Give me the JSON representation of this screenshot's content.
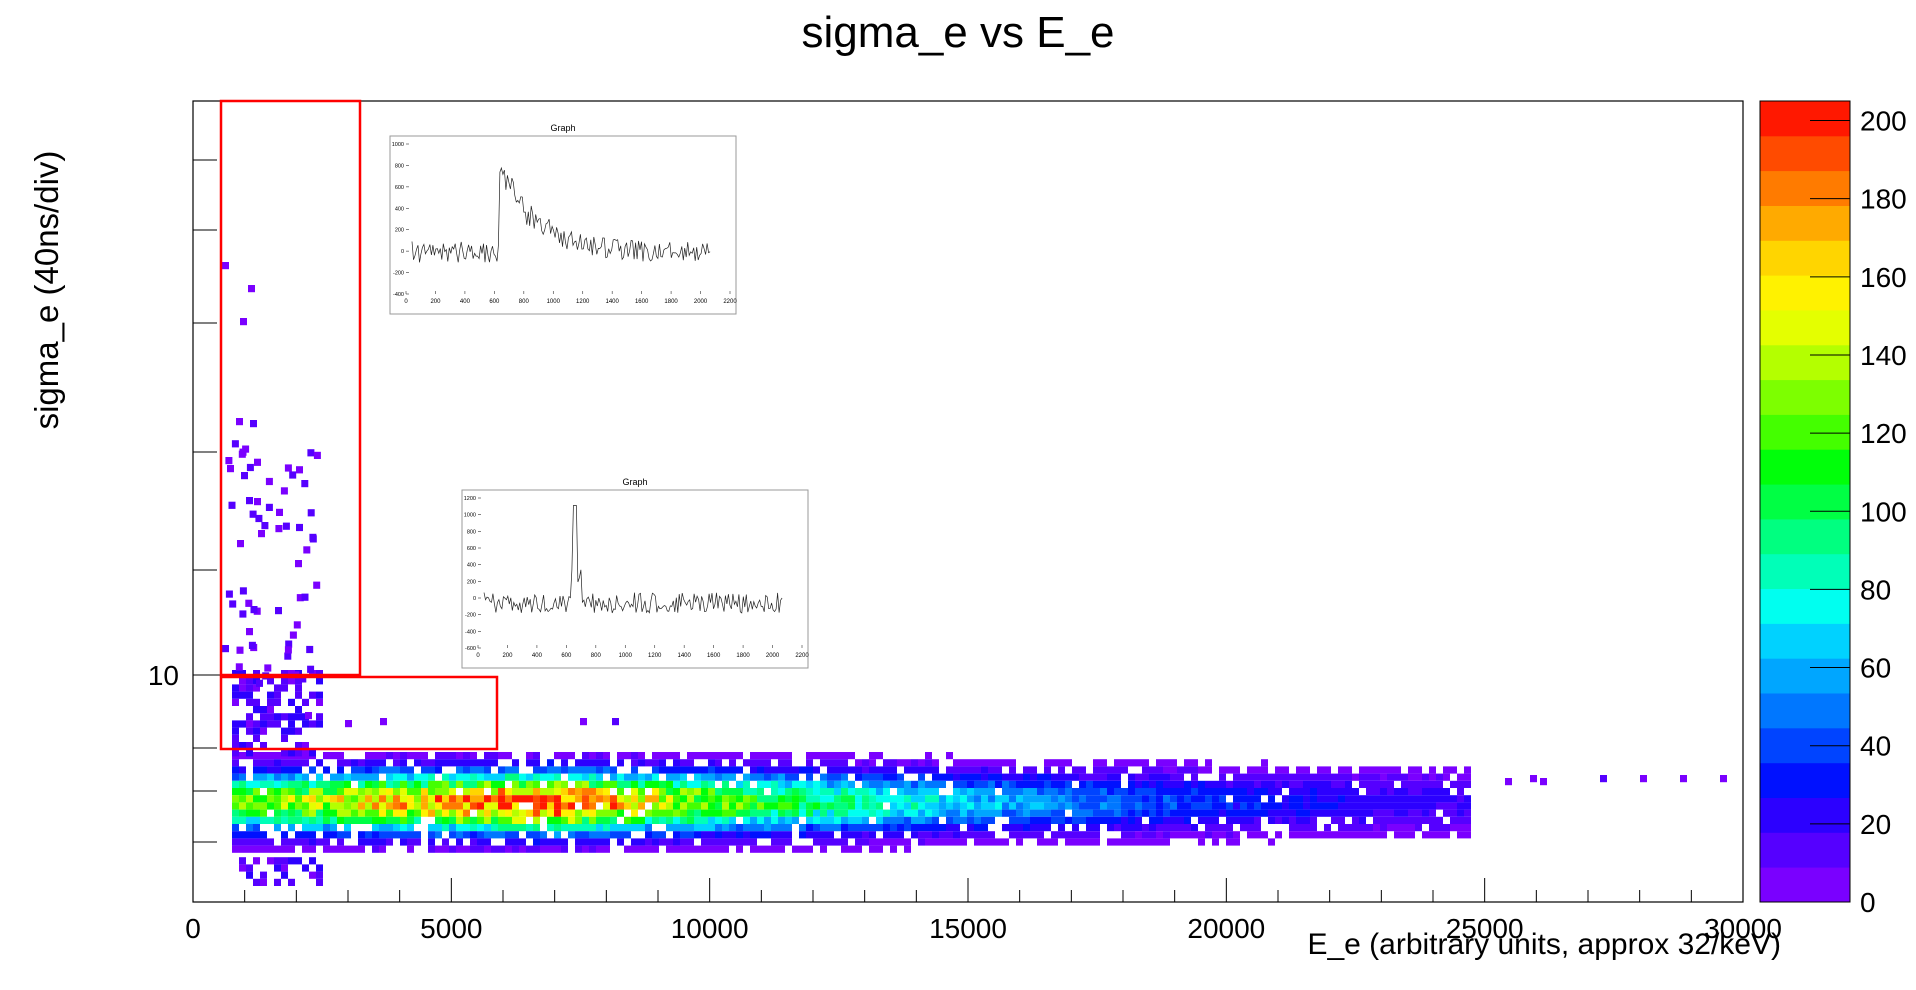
{
  "chart_data": {
    "type": "heatmap",
    "title": "sigma_e vs E_e",
    "xlabel": "E_e (arbitrary units, approx 32/keV)",
    "ylabel": "sigma_e (40ns/div)",
    "xlim": [
      0,
      30000
    ],
    "x_ticks": [
      0,
      5000,
      10000,
      15000,
      20000,
      25000,
      30000
    ],
    "x_tick_labels": [
      "0",
      "5000",
      "10000",
      "15000",
      "20000",
      "25000",
      "30000"
    ],
    "y_scale": "log",
    "y_tick_labels": [
      "10"
    ],
    "colorbar": {
      "range": [
        0,
        205
      ],
      "ticks": [
        0,
        20,
        40,
        60,
        80,
        100,
        120,
        140,
        160,
        180,
        200
      ],
      "tick_labels": [
        "0",
        "20",
        "40",
        "60",
        "80",
        "100",
        "120",
        "140",
        "160",
        "180",
        "200"
      ]
    },
    "insets": [
      {
        "title": "Graph",
        "x_tick_labels": [
          "0",
          "200",
          "400",
          "600",
          "800",
          "1000",
          "1200",
          "1400",
          "1600",
          "1800",
          "2000",
          "2200"
        ],
        "y_tick_labels": [
          "-400",
          "-200",
          "0",
          "200",
          "400",
          "600",
          "800",
          "1000"
        ]
      },
      {
        "title": "Graph",
        "x_tick_labels": [
          "0",
          "200",
          "400",
          "600",
          "800",
          "1000",
          "1200",
          "1400",
          "1600",
          "1800",
          "2000",
          "2200"
        ],
        "y_tick_labels": [
          "-600",
          "-400",
          "-200",
          "0",
          "200",
          "400",
          "600",
          "800",
          "1000",
          "1200"
        ]
      }
    ]
  }
}
